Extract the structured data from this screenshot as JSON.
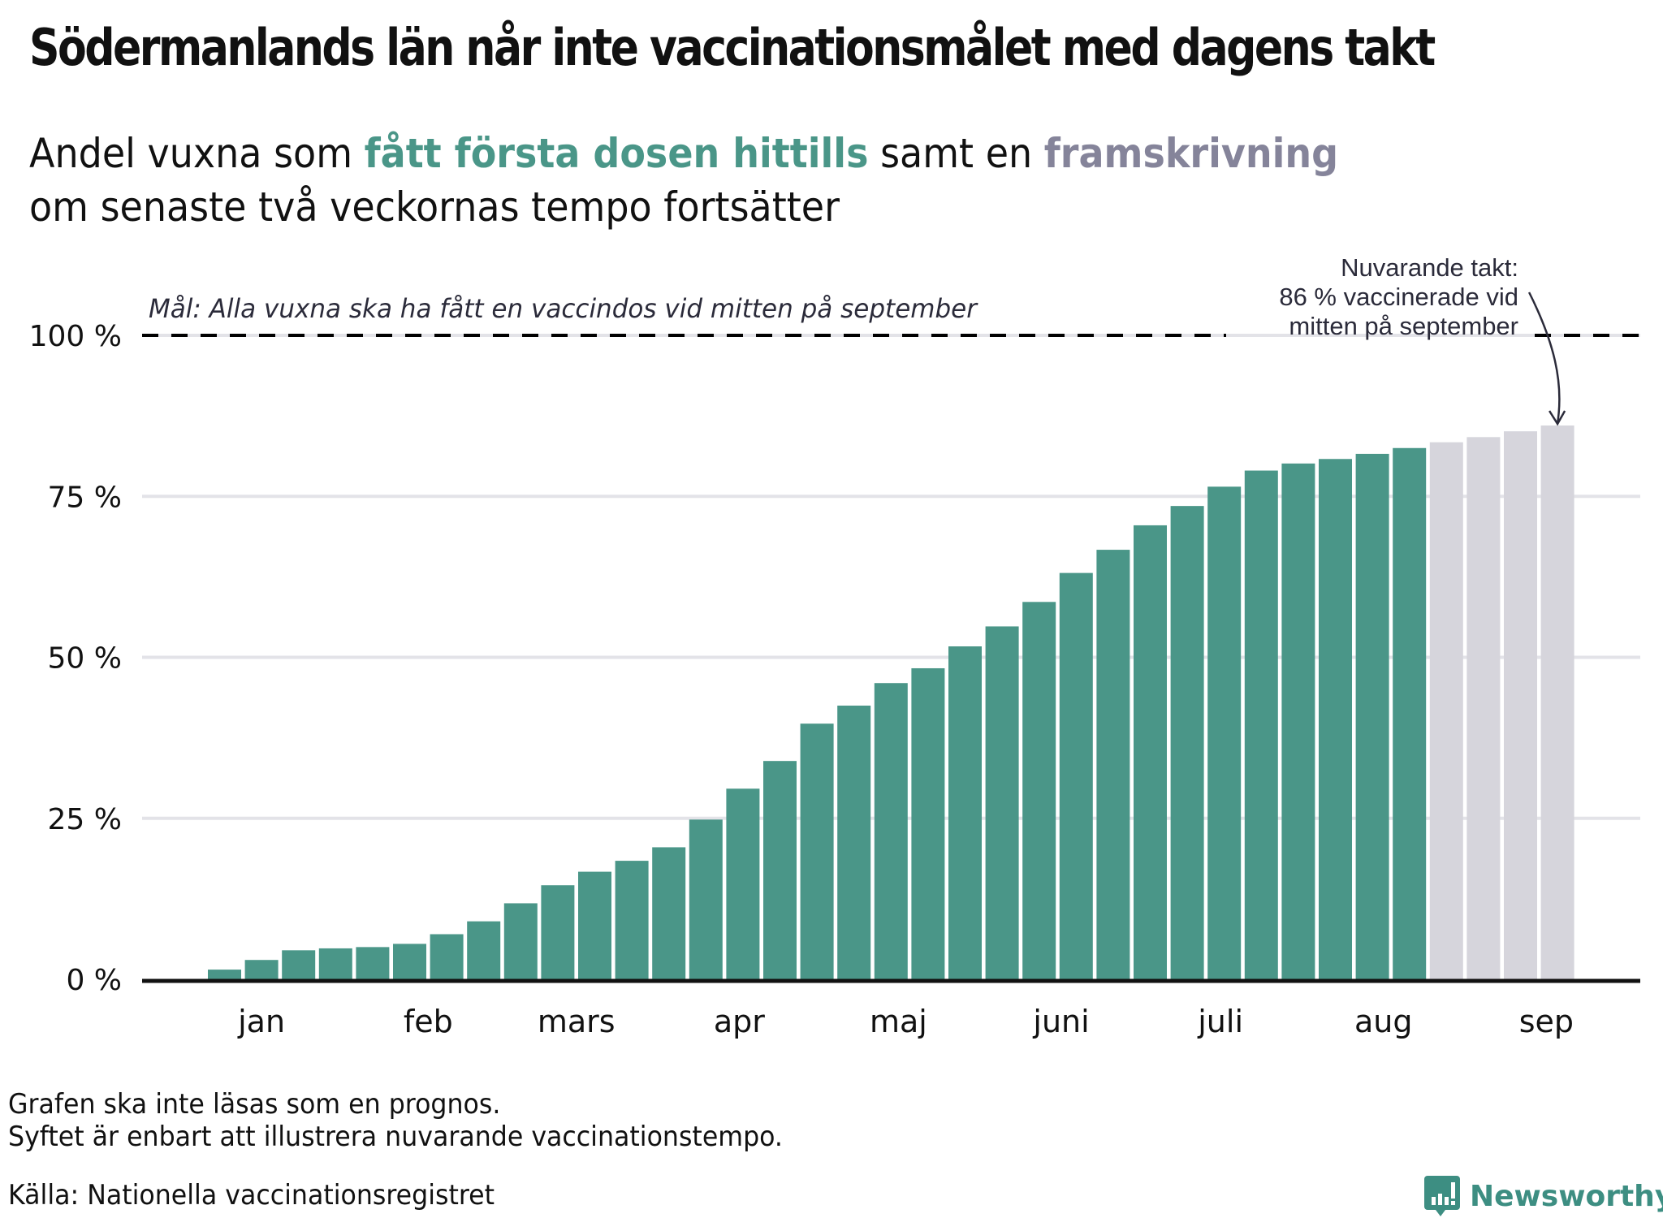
{
  "header": {
    "title": "Södermanlands län når inte vaccinationsmålet med dagens takt",
    "subtitle_part1": "Andel vuxna som ",
    "subtitle_highlight_green": "fått första dosen hittills",
    "subtitle_part2": " samt en ",
    "subtitle_highlight_grey": "framskrivning",
    "subtitle_line2": "om senaste två veckornas tempo fortsätter"
  },
  "colors": {
    "actual": "#4a9688",
    "projection": "#d6d5dc",
    "grid": "#e3e3e8",
    "axis": "#111111",
    "annotation": "#2b2b3a",
    "brand": "#3d8e82"
  },
  "chart_data": {
    "type": "bar",
    "title": "Södermanlands län når inte vaccinationsmålet med dagens takt",
    "xlabel": "",
    "ylabel": "",
    "ylim": [
      0,
      100
    ],
    "yticks": [
      0,
      25,
      50,
      75,
      100
    ],
    "ytick_labels": [
      "0 %",
      "25 %",
      "50 %",
      "75 %",
      "100 %"
    ],
    "grid": true,
    "month_labels": [
      {
        "label": "jan",
        "bar_index": 1
      },
      {
        "label": "feb",
        "bar_index": 5.5
      },
      {
        "label": "mars",
        "bar_index": 9.5
      },
      {
        "label": "apr",
        "bar_index": 13.9
      },
      {
        "label": "maj",
        "bar_index": 18.2
      },
      {
        "label": "juni",
        "bar_index": 22.6
      },
      {
        "label": "juli",
        "bar_index": 26.9
      },
      {
        "label": "aug",
        "bar_index": 31.3
      },
      {
        "label": "sep",
        "bar_index": 35.7
      }
    ],
    "series": [
      {
        "name": "fått första dosen hittills",
        "values": [
          1.5,
          3.0,
          4.5,
          4.8,
          5.0,
          5.5,
          7.0,
          9.0,
          11.8,
          14.6,
          16.7,
          18.4,
          20.5,
          24.8,
          29.6,
          33.9,
          39.7,
          42.5,
          46.0,
          48.3,
          51.7,
          54.8,
          58.6,
          63.1,
          66.7,
          70.5,
          73.5,
          76.5,
          79.0,
          80.1,
          80.8,
          81.6,
          82.5
        ]
      },
      {
        "name": "framskrivning",
        "values": [
          83.4,
          84.2,
          85.1,
          86.0
        ]
      }
    ],
    "goal_line": {
      "value": 100,
      "label": "Mål: Alla vuxna ska ha fått en vaccindos vid mitten på september"
    },
    "annotation": {
      "lines": [
        "Nuvarande takt:",
        "86 % vaccinerade vid",
        "mitten på september"
      ],
      "target_value": 86.0
    }
  },
  "footer": {
    "note_line1": "Grafen ska inte läsas som en prognos.",
    "note_line2": "Syftet är enbart att illustrera nuvarande vaccinationstempo.",
    "source": "Källa: Nationella vaccinationsregistret",
    "logo_text": "Newsworthy",
    "logo_icon": "newsworthy-chart-bubble-icon"
  }
}
